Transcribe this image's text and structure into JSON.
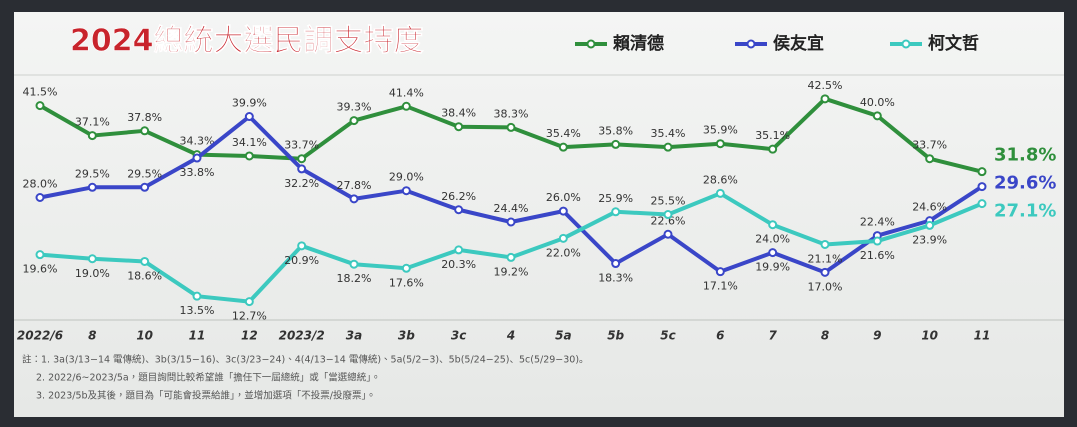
{
  "chart_data": {
    "type": "line",
    "title": "2024總統大選民調支持度",
    "categories": [
      "2022/6",
      "8",
      "10",
      "11",
      "12",
      "2023/2",
      "3a",
      "3b",
      "3c",
      "4",
      "5a",
      "5b",
      "5c",
      "6",
      "7",
      "8",
      "9",
      "10",
      "11"
    ],
    "ylim": [
      10,
      46
    ],
    "series": [
      {
        "name": "賴清德",
        "color": "#2f8f3c",
        "values": [
          41.5,
          37.1,
          37.8,
          34.3,
          34.1,
          33.7,
          39.3,
          41.4,
          38.4,
          38.3,
          35.4,
          35.8,
          35.4,
          35.9,
          35.1,
          42.5,
          40.0,
          33.7,
          31.8
        ],
        "value_labels": [
          "41.5%",
          "37.1%",
          "37.8%",
          "34.3%",
          "34.1%",
          "33.7%",
          "39.3%",
          "41.4%",
          "38.4%",
          "38.3%",
          "35.4%",
          "35.8%",
          "35.4%",
          "35.9%",
          "35.1%",
          "42.5%",
          "40.0%",
          "33.7%",
          "31.8%"
        ]
      },
      {
        "name": "侯友宜",
        "color": "#3a46c8",
        "values": [
          28.0,
          29.5,
          29.5,
          33.8,
          39.9,
          32.2,
          27.8,
          29.0,
          26.2,
          24.4,
          26.0,
          18.3,
          22.6,
          17.1,
          19.9,
          17.0,
          22.4,
          24.6,
          29.6
        ],
        "value_labels": [
          "28.0%",
          "29.5%",
          "29.5%",
          "33.8%",
          "39.9%",
          "32.2%",
          "27.8%",
          "29.0%",
          "26.2%",
          "24.4%",
          "26.0%",
          "18.3%",
          "22.6%",
          "17.1%",
          "19.9%",
          "17.0%",
          "22.4%",
          "24.6%",
          "29.6%"
        ]
      },
      {
        "name": "柯文哲",
        "color": "#3cc9bf",
        "values": [
          19.6,
          19.0,
          18.6,
          13.5,
          12.7,
          20.9,
          18.2,
          17.6,
          20.3,
          19.2,
          22.0,
          25.9,
          25.5,
          28.6,
          24.0,
          21.1,
          21.6,
          23.9,
          27.1
        ],
        "value_labels": [
          "19.6%",
          "19.0%",
          "18.6%",
          "13.5%",
          "12.7%",
          "20.9%",
          "18.2%",
          "17.6%",
          "20.3%",
          "19.2%",
          "22.0%",
          "25.9%",
          "25.5%",
          "28.6%",
          "24.0%",
          "21.1%",
          "21.6%",
          "23.9%",
          "27.1%"
        ]
      }
    ],
    "notes": [
      "註：1. 3a(3/13−14 電傳統)、3b(3/15−16)、3c(3/23−24)、4(4/13−14 電傳統)、5a(5/2−3)、5b(5/24−25)、5c(5/29−30)。",
      "2. 2022/6~2023/5a，題目詢問比較希望誰「擔任下一屆總統」或「當選總統」。",
      "3. 2023/5b及其後，題目為「可能會投票給誰」，並增加選項「不投票/投廢票」。"
    ]
  }
}
